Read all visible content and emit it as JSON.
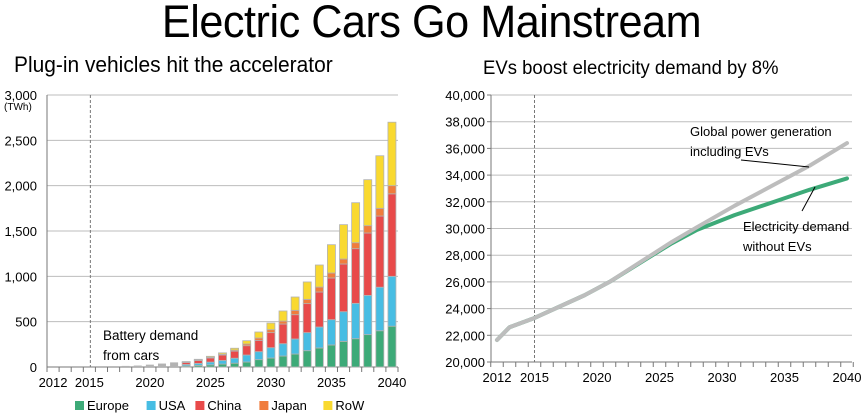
{
  "title": "Electric Cars Go Mainstream",
  "chart_data": [
    {
      "type": "bar",
      "stacked": true,
      "title": "Plug-in vehicles hit the accelerator",
      "ylabel": "(TWh)",
      "ylim": [
        0,
        3000
      ],
      "yticks": [
        0,
        500,
        1000,
        1500,
        2000,
        2500,
        3000
      ],
      "ytick_labels": [
        "0",
        "500",
        "1,000",
        "1,500",
        "2,000",
        "2,500",
        "3,000"
      ],
      "xlim": [
        2012,
        2040
      ],
      "xtick_labels": [
        "2012",
        "2015",
        "2020",
        "2025",
        "2030",
        "2035",
        "2040"
      ],
      "xticks": [
        2012,
        2015,
        2020,
        2025,
        2030,
        2035,
        2040
      ],
      "grid": true,
      "reference_line_year": 2015,
      "annotation": [
        "Battery demand",
        "from cars"
      ],
      "legend_position": "bottom",
      "colors": {
        "Europe": "#3daa78",
        "USA": "#47bde3",
        "China": "#e84a4a",
        "Japan": "#f07c3c",
        "RoW": "#f9d930",
        "Total (unsplit)": "#b3b3b3"
      },
      "unsplit_years": [
        2018,
        2019,
        2020,
        2021,
        2022
      ],
      "unsplit_totals": [
        12,
        16,
        26,
        38,
        51
      ],
      "categories": [
        2023,
        2024,
        2025,
        2026,
        2027,
        2028,
        2029,
        2030,
        2031,
        2032,
        2033,
        2034,
        2035,
        2036,
        2037,
        2038,
        2039,
        2040
      ],
      "series": [
        {
          "name": "Europe",
          "values": [
            12,
            18,
            24,
            32,
            42,
            55,
            81,
            99,
            121,
            143,
            180,
            210,
            243,
            283,
            312,
            357,
            400,
            450
          ]
        },
        {
          "name": "USA",
          "values": [
            16,
            22,
            30,
            40,
            55,
            77,
            88,
            114,
            136,
            166,
            199,
            231,
            279,
            327,
            390,
            433,
            480,
            550
          ]
        },
        {
          "name": "China",
          "values": [
            22,
            32,
            46,
            60,
            78,
            103,
            125,
            166,
            217,
            268,
            320,
            386,
            460,
            526,
            603,
            688,
            785,
            910
          ]
        },
        {
          "name": "Japan",
          "values": [
            4,
            5,
            7,
            9,
            12,
            19,
            26,
            33,
            33,
            48,
            47,
            55,
            55,
            55,
            66,
            81,
            85,
            90
          ]
        },
        {
          "name": "RoW",
          "values": [
            6,
            8,
            11,
            15,
            20,
            36,
            66,
            73,
            111,
            147,
            192,
            243,
            312,
            379,
            441,
            507,
            580,
            700
          ]
        }
      ]
    },
    {
      "type": "line",
      "title": "EVs boost electricity demand by 8%",
      "ylim": [
        20000,
        40000
      ],
      "yticks": [
        20000,
        22000,
        24000,
        26000,
        28000,
        30000,
        32000,
        34000,
        36000,
        38000,
        40000
      ],
      "ytick_labels": [
        "20,000",
        "22,000",
        "24,000",
        "26,000",
        "28,000",
        "30,000",
        "32,000",
        "34,000",
        "36,000",
        "38,000",
        "40,000"
      ],
      "xlim": [
        2012,
        2040
      ],
      "xticks": [
        2012,
        2015,
        2020,
        2025,
        2030,
        2035,
        2040
      ],
      "xtick_labels": [
        "2012",
        "2015",
        "2020",
        "2025",
        "2030",
        "2035",
        "2040"
      ],
      "grid": true,
      "reference_line_year": 2015,
      "series": [
        {
          "name": "Electricity demand without EVs",
          "label_lines": [
            "Electricity demand",
            "without EVs"
          ],
          "color": "#3daa78",
          "x": [
            2012,
            2013,
            2015,
            2019,
            2021,
            2024,
            2026,
            2028,
            2031,
            2034,
            2037,
            2040
          ],
          "y": [
            21650,
            22600,
            23300,
            25000,
            26000,
            27750,
            28900,
            29900,
            31000,
            31950,
            32900,
            33750
          ]
        },
        {
          "name": "Global power generation including EVs",
          "label_lines": [
            "Global power generation",
            "including EVs"
          ],
          "color": "#bdbdbd",
          "x": [
            2012,
            2013,
            2015,
            2019,
            2021,
            2024,
            2026,
            2028,
            2031,
            2034,
            2037,
            2040
          ],
          "y": [
            21650,
            22600,
            23300,
            25000,
            26000,
            27800,
            29000,
            30100,
            31700,
            33200,
            34700,
            36400
          ]
        }
      ]
    }
  ]
}
